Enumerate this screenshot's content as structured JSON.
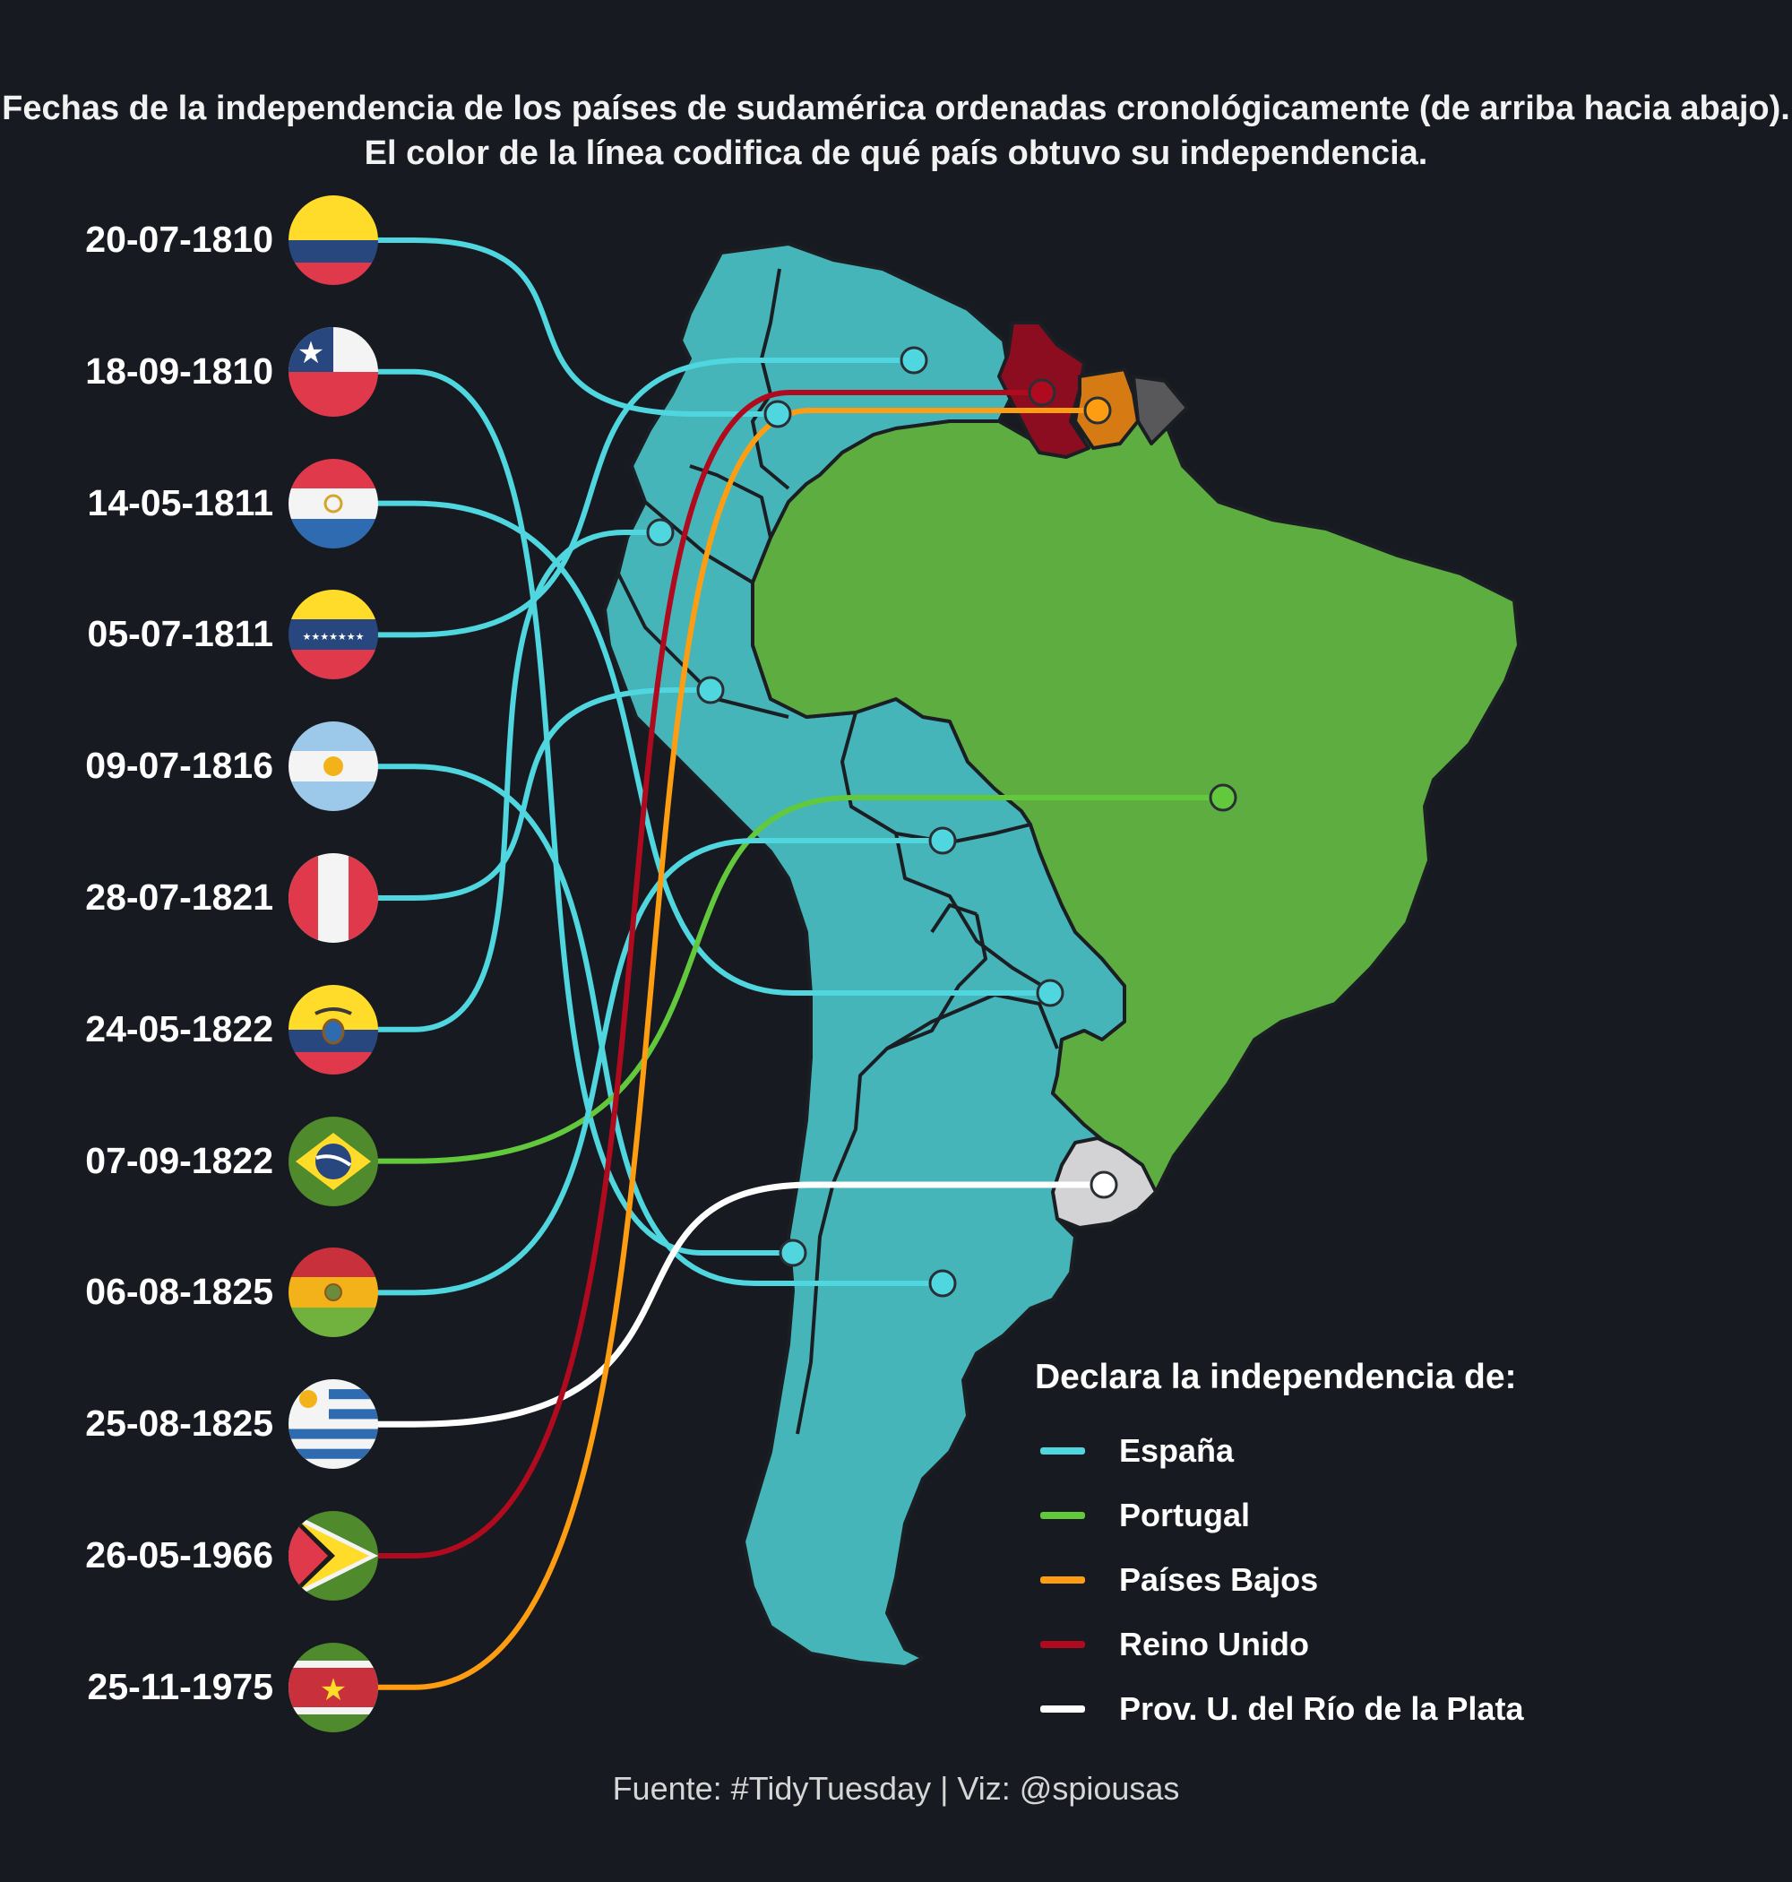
{
  "title": "Fechas de la independencia de los países de sudamérica ordenadas cronológicamente (de arriba hacia abajo). El color de la línea codifica de qué país obtuvo su independencia.",
  "colors": {
    "background": "#171b21",
    "spain_land": "#45b5ba",
    "brazil_land": "#5dad41",
    "guyana_land": "#8c0d1f",
    "suriname_land": "#d67a14",
    "french_guiana_land": "#58585a",
    "uruguay_land": "#d3d3d5",
    "border": "#1b1f24"
  },
  "legend": {
    "title": "Declara la independencia de:",
    "items": [
      {
        "label": "España",
        "color": "#4fd6de"
      },
      {
        "label": "Portugal",
        "color": "#63c93c"
      },
      {
        "label": "Países Bajos",
        "color": "#ff9d12"
      },
      {
        "label": "Reino Unido",
        "color": "#b00a1e"
      },
      {
        "label": "Prov. U. del Río de la Plata",
        "color": "#ffffff"
      }
    ]
  },
  "countries": [
    {
      "date": "20-07-1810",
      "flag": "colombia-flag",
      "from": "España"
    },
    {
      "date": "18-09-1810",
      "flag": "chile-flag",
      "from": "España"
    },
    {
      "date": "14-05-1811",
      "flag": "paraguay-flag",
      "from": "España"
    },
    {
      "date": "05-07-1811",
      "flag": "venezuela-flag",
      "from": "España"
    },
    {
      "date": "09-07-1816",
      "flag": "argentina-flag",
      "from": "España"
    },
    {
      "date": "28-07-1821",
      "flag": "peru-flag",
      "from": "España"
    },
    {
      "date": "24-05-1822",
      "flag": "ecuador-flag",
      "from": "España"
    },
    {
      "date": "07-09-1822",
      "flag": "brazil-flag",
      "from": "Portugal"
    },
    {
      "date": "06-08-1825",
      "flag": "bolivia-flag",
      "from": "España"
    },
    {
      "date": "25-08-1825",
      "flag": "uruguay-flag",
      "from": "Prov. U. del Río de la Plata"
    },
    {
      "date": "26-05-1966",
      "flag": "guyana-flag",
      "from": "Reino Unido"
    },
    {
      "date": "25-11-1975",
      "flag": "suriname-flag",
      "from": "Países Bajos"
    }
  ],
  "source": "Fuente: #TidyTuesday | Viz: @spiousas"
}
